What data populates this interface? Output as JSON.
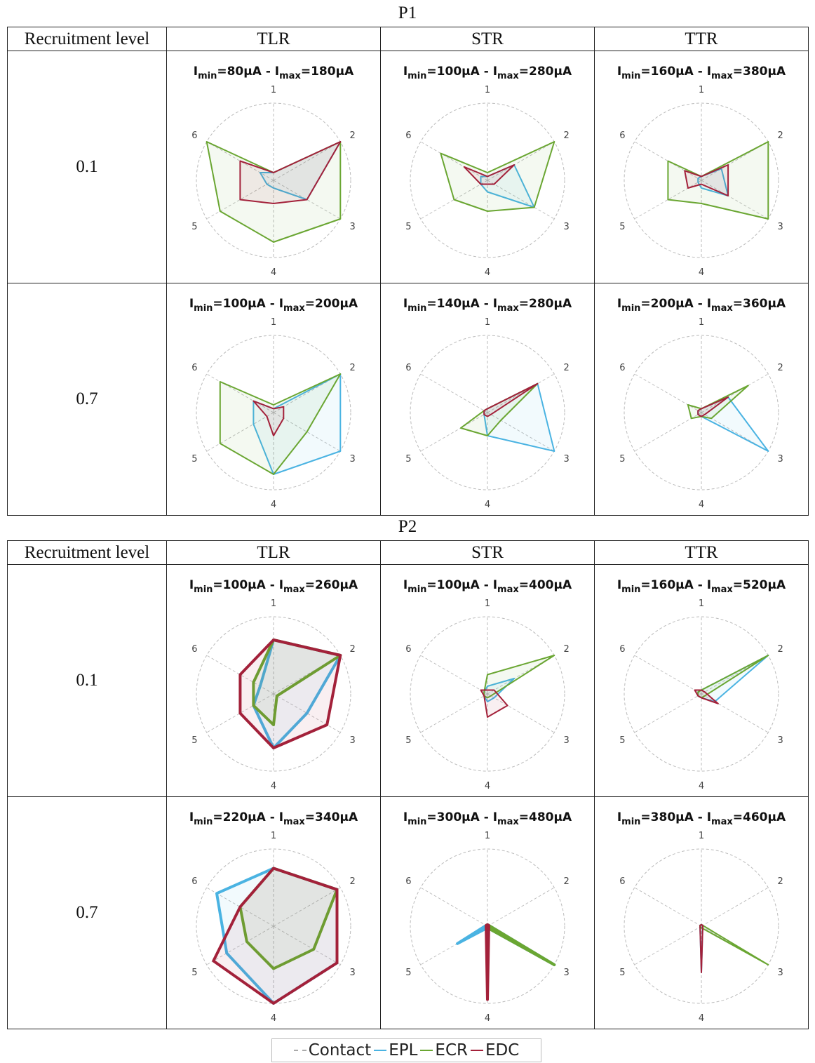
{
  "participants": [
    {
      "title": "P1",
      "header": {
        "recruitment_label": "Recruitment level",
        "columns": [
          "TLR",
          "STR",
          "TTR"
        ]
      },
      "rows": [
        {
          "level": "0.1",
          "cells": [
            {
              "imin": "80µA",
              "imax": "180µA"
            },
            {
              "imin": "100µA",
              "imax": "280µA"
            },
            {
              "imin": "160µA",
              "imax": "380µA"
            }
          ]
        },
        {
          "level": "0.7",
          "cells": [
            {
              "imin": "100µA",
              "imax": "200µA"
            },
            {
              "imin": "140µA",
              "imax": "280µA"
            },
            {
              "imin": "200µA",
              "imax": "360µA"
            }
          ]
        }
      ]
    },
    {
      "title": "P2",
      "header": {
        "recruitment_label": "Recruitment level",
        "columns": [
          "TLR",
          "STR",
          "TTR"
        ]
      },
      "rows": [
        {
          "level": "0.1",
          "cells": [
            {
              "imin": "100µA",
              "imax": "260µA"
            },
            {
              "imin": "100µA",
              "imax": "400µA"
            },
            {
              "imin": "160µA",
              "imax": "520µA"
            }
          ]
        },
        {
          "level": "0.7",
          "cells": [
            {
              "imin": "220µA",
              "imax": "340µA"
            },
            {
              "imin": "300µA",
              "imax": "480µA"
            },
            {
              "imin": "380µA",
              "imax": "460µA"
            }
          ]
        }
      ]
    }
  ],
  "legend": [
    {
      "label": "Contact",
      "color": "#aaaaaa",
      "dashed": true
    },
    {
      "label": "EPL",
      "color": "#4ab3e2"
    },
    {
      "label": "ECR",
      "color": "#6aa632"
    },
    {
      "label": "EDC",
      "color": "#a3213a"
    }
  ],
  "chart_data": {
    "type": "radar",
    "axes": [
      "1",
      "2",
      "3",
      "4",
      "5",
      "6"
    ],
    "range": [
      0,
      1
    ],
    "series_names": [
      "EPL",
      "ECR",
      "EDC"
    ],
    "colors": {
      "EPL": "#4ab3e2",
      "ECR": "#6aa632",
      "EDC": "#a3213a"
    },
    "panels": [
      {
        "participant": "P1",
        "level": "0.1",
        "method": "TLR",
        "EPL": [
          0.1,
          1.0,
          0.5,
          0.1,
          0.1,
          0.2
        ],
        "ECR": [
          0.1,
          1.0,
          1.0,
          0.8,
          0.8,
          1.0
        ],
        "EDC": [
          0.1,
          1.0,
          0.5,
          0.3,
          0.5,
          0.5
        ]
      },
      {
        "participant": "P1",
        "level": "0.1",
        "method": "STR",
        "EPL": [
          0.05,
          0.4,
          0.7,
          0.15,
          0.1,
          0.1
        ],
        "ECR": [
          0.1,
          1.0,
          0.7,
          0.4,
          0.5,
          0.7
        ],
        "EDC": [
          0.05,
          0.4,
          0.1,
          0.05,
          0.1,
          0.35
        ]
      },
      {
        "participant": "P1",
        "level": "0.1",
        "method": "TTR",
        "EPL": [
          0.05,
          0.3,
          0.4,
          0.1,
          0.05,
          0.05
        ],
        "ECR": [
          0.05,
          1.0,
          1.0,
          0.3,
          0.5,
          0.5
        ],
        "EDC": [
          0.05,
          0.4,
          0.4,
          0.05,
          0.2,
          0.25
        ]
      },
      {
        "participant": "P1",
        "level": "0.7",
        "method": "TLR",
        "EPL": [
          0.05,
          1.0,
          1.0,
          0.8,
          0.3,
          0.3
        ],
        "ECR": [
          0.1,
          1.0,
          0.5,
          0.8,
          0.8,
          0.8
        ],
        "EDC": [
          0.05,
          0.15,
          0.15,
          0.3,
          0.1,
          0.3
        ]
      },
      {
        "participant": "P1",
        "level": "0.7",
        "method": "STR",
        "EPL": [
          0.05,
          0.75,
          1.0,
          0.3,
          0.05,
          0.05
        ],
        "ECR": [
          0.05,
          0.75,
          0.2,
          0.3,
          0.4,
          0.05
        ],
        "EDC": [
          0.05,
          0.75,
          0.05,
          0.05,
          0.05,
          0.05
        ]
      },
      {
        "participant": "P1",
        "level": "0.7",
        "method": "TTR",
        "EPL": [
          0.05,
          0.4,
          1.0,
          0.05,
          0.05,
          0.05
        ],
        "ECR": [
          0.05,
          0.7,
          0.15,
          0.05,
          0.15,
          0.2
        ],
        "EDC": [
          0.05,
          0.4,
          0.05,
          0.05,
          0.05,
          0.05
        ]
      },
      {
        "participant": "P2",
        "level": "0.1",
        "method": "TLR",
        "EPL": [
          0.7,
          1.0,
          0.5,
          0.7,
          0.3,
          0.2
        ],
        "ECR": [
          0.7,
          1.0,
          0.05,
          0.4,
          0.3,
          0.3
        ],
        "EDC": [
          0.7,
          1.0,
          0.8,
          0.7,
          0.5,
          0.5
        ]
      },
      {
        "participant": "P2",
        "level": "0.1",
        "method": "STR",
        "EPL": [
          0.1,
          0.4,
          0.1,
          0.1,
          0.05,
          0.05
        ],
        "ECR": [
          0.25,
          1.0,
          0.05,
          0.05,
          0.05,
          0.05
        ],
        "EDC": [
          0.05,
          0.1,
          0.3,
          0.3,
          0.05,
          0.1
        ]
      },
      {
        "participant": "P2",
        "level": "0.1",
        "method": "TTR",
        "EPL": [
          0.05,
          1.0,
          0.2,
          0.05,
          0.05,
          0.05
        ],
        "ECR": [
          0.05,
          1.0,
          0.05,
          0.05,
          0.05,
          0.05
        ],
        "EDC": [
          0.05,
          0.05,
          0.25,
          0.05,
          0.05,
          0.1
        ]
      },
      {
        "participant": "P2",
        "level": "0.7",
        "method": "TLR",
        "EPL": [
          0.75,
          0.95,
          0.95,
          1.0,
          0.7,
          0.85
        ],
        "ECR": [
          0.75,
          0.95,
          0.6,
          0.55,
          0.4,
          0.5
        ],
        "EDC": [
          0.75,
          0.95,
          0.95,
          1.0,
          0.9,
          0.5
        ]
      },
      {
        "participant": "P2",
        "level": "0.7",
        "method": "STR",
        "EPL": [
          0.02,
          0.02,
          1.0,
          0.02,
          0.45,
          0.02
        ],
        "ECR": [
          0.02,
          0.02,
          1.0,
          0.02,
          0.02,
          0.02
        ],
        "EDC": [
          0.02,
          0.02,
          0.02,
          0.95,
          0.02,
          0.02
        ]
      },
      {
        "participant": "P2",
        "level": "0.7",
        "method": "TTR",
        "EPL": [
          0.02,
          0.02,
          0.02,
          0.6,
          0.02,
          0.02
        ],
        "ECR": [
          0.02,
          0.02,
          1.0,
          0.02,
          0.02,
          0.02
        ],
        "EDC": [
          0.02,
          0.02,
          0.02,
          0.6,
          0.02,
          0.02
        ]
      }
    ]
  }
}
